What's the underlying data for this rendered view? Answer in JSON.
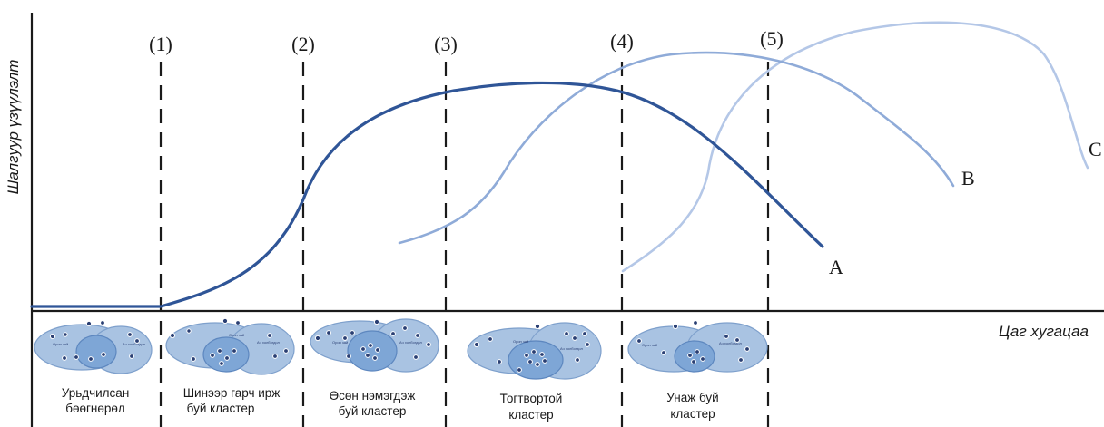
{
  "axes": {
    "y_label": "Шалгуур үзүүлэлт",
    "x_label": "Цаг хугацаа"
  },
  "stage_markers": [
    "(1)",
    "(2)",
    "(3)",
    "(4)",
    "(5)"
  ],
  "curve_labels": {
    "a": "A",
    "b": "B",
    "c": "C"
  },
  "colors": {
    "curve_a": "#2f5597",
    "curve_b": "#8fabd8",
    "curve_c": "#b4c7e7",
    "axis": "#1a1a1a"
  },
  "stages": [
    {
      "line1": "Урьдчилсан",
      "line2": "бөөгнөрөл",
      "inner_labels": [
        "Орон зай",
        "Ач холбогдол"
      ]
    },
    {
      "line1": "Шинээр гарч ирж",
      "line2": "буй кластер",
      "inner_labels": [
        "Орон зай",
        "Ач холбогдол"
      ]
    },
    {
      "line1": "Өсөн нэмэгдэж",
      "line2": "буй кластер",
      "inner_labels": [
        "Орон зай",
        "Ач холбогдол"
      ]
    },
    {
      "line1": "Тогтвортой",
      "line2": "кластер",
      "inner_labels": [
        "Орон зай",
        "Ач холбогдол"
      ]
    },
    {
      "line1": "Унаж буй",
      "line2": "кластер",
      "inner_labels": [
        "Орон зай",
        "Ач холбогдол"
      ]
    }
  ]
}
